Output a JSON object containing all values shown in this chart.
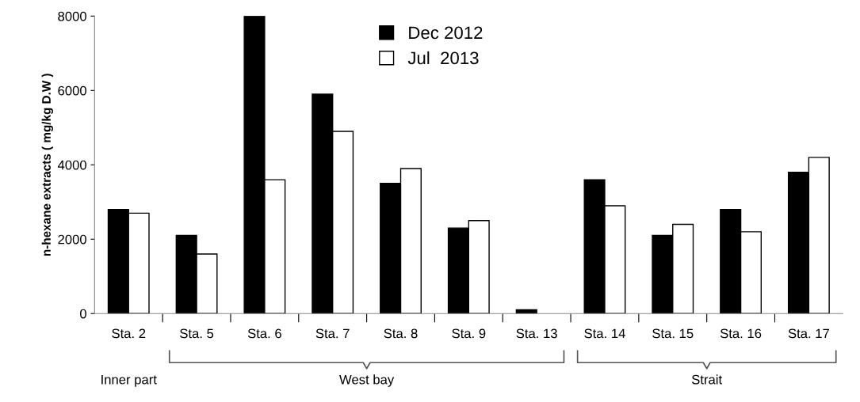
{
  "chart_data": {
    "type": "bar",
    "ylabel": "n-hexane extracts ( mg/kg D.W )",
    "categories": [
      "Sta. 2",
      "Sta. 5",
      "Sta. 6",
      "Sta. 7",
      "Sta. 8",
      "Sta. 9",
      "Sta. 13",
      "Sta. 14",
      "Sta. 15",
      "Sta. 16",
      "Sta. 17"
    ],
    "series": [
      {
        "name": "Dec 2012",
        "color": "#000000",
        "values": [
          2800,
          2100,
          8000,
          5900,
          3500,
          2300,
          100,
          3600,
          2100,
          2800,
          3800
        ]
      },
      {
        "name": "Jul  2013",
        "color": "#ffffff",
        "values": [
          2700,
          1600,
          3600,
          4900,
          3900,
          2500,
          null,
          2900,
          2400,
          2200,
          4200
        ]
      }
    ],
    "ylim": [
      0,
      8000
    ],
    "yticks": [
      0,
      2000,
      4000,
      6000,
      8000
    ],
    "grid": false,
    "legend": "top",
    "annotations": [
      "Inner part",
      "West bay",
      "Strait"
    ]
  }
}
